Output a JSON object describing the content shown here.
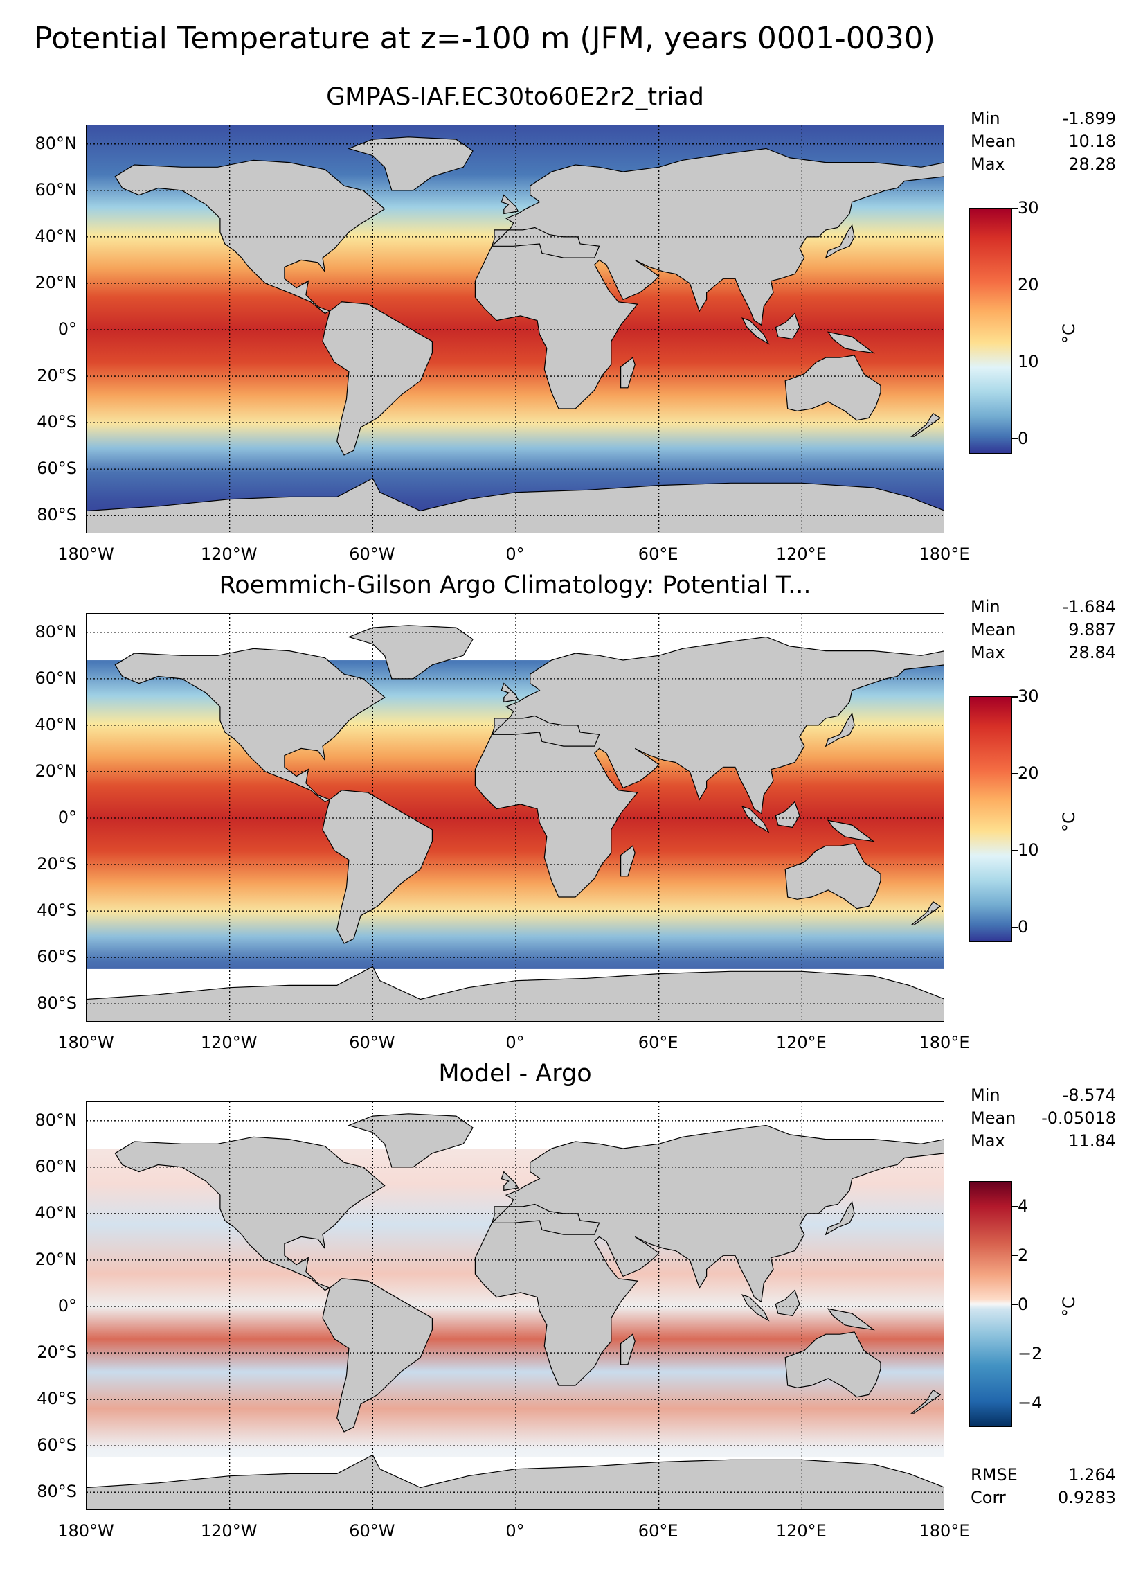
{
  "suptitle": "Potential Temperature at z=-100 m (JFM, years 0001-0030)",
  "lat_labels": [
    "80°N",
    "60°N",
    "40°N",
    "20°N",
    "0°",
    "20°S",
    "40°S",
    "60°S",
    "80°S"
  ],
  "lon_labels": [
    "180°W",
    "120°W",
    "60°W",
    "0°",
    "60°E",
    "120°E",
    "180°E"
  ],
  "colors": {
    "land": "#c8c8c8",
    "no_data": "#ffffff",
    "frame": "#000000"
  },
  "panels": [
    {
      "title": "GMPAS-IAF.EC30to60E2r2_triad",
      "stats": [
        {
          "label": "Min",
          "value": "-1.899"
        },
        {
          "label": "Mean",
          "value": "10.18"
        },
        {
          "label": "Max",
          "value": "28.28"
        }
      ],
      "colorbar": {
        "unit": "°C",
        "ticks": [
          "30",
          "20",
          "10",
          "0"
        ],
        "cmap": "RdYlBu_r",
        "range": [
          -2,
          30
        ]
      }
    },
    {
      "title": "Roemmich-Gilson Argo Climatology: Potential T...",
      "stats": [
        {
          "label": "Min",
          "value": "-1.684"
        },
        {
          "label": "Mean",
          "value": "9.887"
        },
        {
          "label": "Max",
          "value": "28.84"
        }
      ],
      "colorbar": {
        "unit": "°C",
        "ticks": [
          "30",
          "20",
          "10",
          "0"
        ],
        "cmap": "RdYlBu_r",
        "range": [
          -2,
          30
        ]
      }
    },
    {
      "title": "Model - Argo",
      "stats": [
        {
          "label": "Min",
          "value": "-8.574"
        },
        {
          "label": "Mean",
          "value": "-0.05018"
        },
        {
          "label": "Max",
          "value": "11.84"
        }
      ],
      "colorbar": {
        "unit": "°C",
        "ticks": [
          "4",
          "2",
          "0",
          "−2",
          "−4"
        ],
        "cmap": "RdBu_r",
        "range": [
          -5,
          5
        ]
      }
    }
  ],
  "metrics": [
    {
      "label": "RMSE",
      "value": "1.264"
    },
    {
      "label": "Corr",
      "value": "0.9283"
    }
  ]
}
